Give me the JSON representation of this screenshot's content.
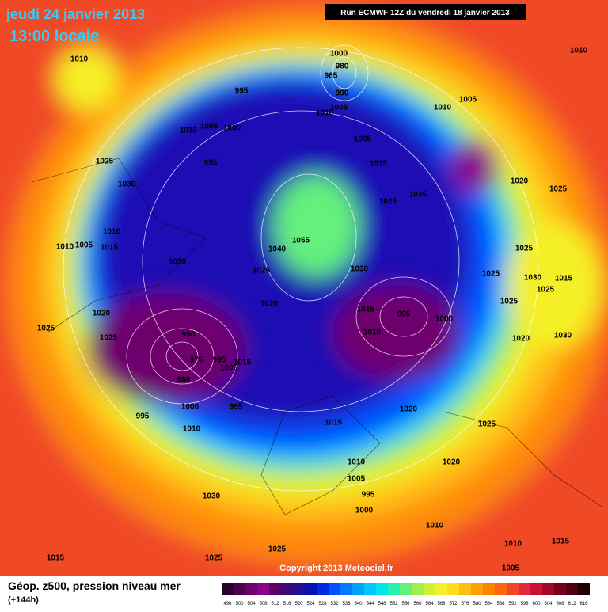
{
  "header": {
    "date": "jeudi 24 janvier 2013",
    "time": "13:00 locale",
    "run": "Run ECMWF 12Z du vendredi 18 janvier 2013"
  },
  "map": {
    "isobar_labels": [
      "1010",
      "1000",
      "980",
      "985",
      "990",
      "1005",
      "1010",
      "995",
      "1010",
      "1005",
      "1000",
      "995",
      "1025",
      "1030",
      "1010",
      "1010",
      "1005",
      "1015",
      "1030",
      "1020",
      "1025",
      "1025",
      "990",
      "975",
      "980",
      "995",
      "1005",
      "1015",
      "1000",
      "995",
      "995",
      "1010",
      "1030",
      "1015",
      "1025",
      "1025",
      "1055",
      "1040",
      "1025",
      "1020",
      "1030",
      "1015",
      "995",
      "1000",
      "1010",
      "1005",
      "1015",
      "1025",
      "1035",
      "1010",
      "1005",
      "1020",
      "1025",
      "1010",
      "1025",
      "1025",
      "1030",
      "1015",
      "1025",
      "1025",
      "1030",
      "1020",
      "1020",
      "1015",
      "1025",
      "1010",
      "1005",
      "1020",
      "995",
      "1000",
      "1010",
      "1010",
      "1015",
      "1005"
    ]
  },
  "footer": {
    "copyright": "Copyright 2013 Meteociel.fr",
    "legend_title": "Géop. z500, pression niveau mer",
    "lead_time": "(+144h)",
    "scale": {
      "values": [
        496,
        500,
        504,
        508,
        512,
        516,
        520,
        524,
        528,
        532,
        536,
        540,
        544,
        548,
        552,
        556,
        560,
        564,
        568,
        572,
        576,
        580,
        584,
        588,
        592,
        596,
        600,
        604,
        608,
        612,
        616
      ],
      "colors": [
        "#2d0033",
        "#4b0050",
        "#6e006e",
        "#8c008c",
        "#5a0064",
        "#3c0a78",
        "#1e0f96",
        "#0014b4",
        "#0028dc",
        "#0050ff",
        "#0078ff",
        "#00a0ff",
        "#00c8ff",
        "#00e6e6",
        "#28f0b4",
        "#64f07d",
        "#a0f050",
        "#d2f032",
        "#f5f028",
        "#ffdc1e",
        "#ffbe14",
        "#ffa00a",
        "#ff8200",
        "#ff6414",
        "#f04628",
        "#e6283c",
        "#c81432",
        "#a00a28",
        "#78001e",
        "#500014",
        "#1e0000"
      ]
    }
  }
}
